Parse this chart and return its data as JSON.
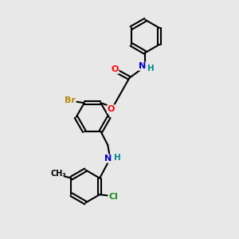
{
  "bg_color": "#e8e8e8",
  "bond_color": "#000000",
  "atom_colors": {
    "O": "#ff0000",
    "N": "#0000cd",
    "Br": "#b8860b",
    "Cl": "#228b22",
    "H": "#008b8b",
    "C": "#000000"
  }
}
